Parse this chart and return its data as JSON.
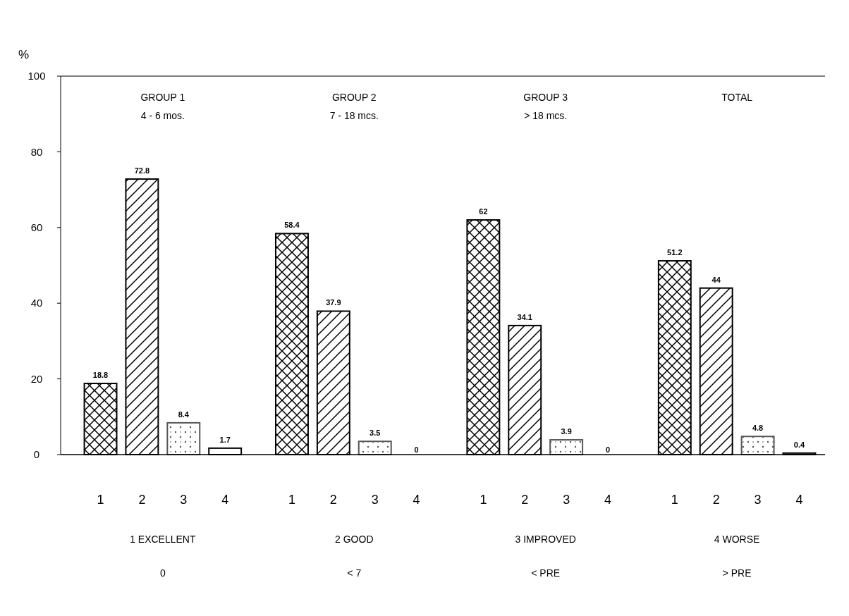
{
  "chart_data": {
    "type": "bar",
    "ylabel": "%",
    "categories": [
      "GROUP 1\n4 - 6 mos.",
      "GROUP 2\n7 - 18 mcs.",
      "GROUP 3\n> 18 mcs.",
      "TOTAL"
    ],
    "series": [
      {
        "name": "1",
        "color": "#000000",
        "values": [
          18.8,
          58.4,
          62,
          51.2
        ],
        "value_labels": [
          "18.8",
          "58.4",
          "62",
          "51.2"
        ]
      },
      {
        "name": "2",
        "color": "#000000",
        "values": [
          72.8,
          37.9,
          34.1,
          44
        ],
        "value_labels": [
          "72.8",
          "37.9",
          "34.1",
          "44"
        ]
      },
      {
        "name": "3",
        "color": "#555555",
        "values": [
          8.4,
          3.5,
          3.9,
          4.8
        ],
        "value_labels": [
          "8.4",
          "3.5",
          "3.9",
          "4.8"
        ]
      },
      {
        "name": "4",
        "color": "#000000",
        "values": [
          1.7,
          0,
          0,
          0.4
        ],
        "value_labels": [
          "1.7",
          null,
          null,
          "0.4"
        ]
      }
    ],
    "ylim": [
      0,
      100
    ],
    "yticks": [
      0,
      20,
      40,
      60,
      80,
      100
    ],
    "legend": "bottom",
    "annotations": [
      "1 EXCELLENT\n0",
      "2 GOOD\n< 7",
      "3 IMPROVED\n< PRE",
      "4 WORSE\n> PRE",
      "0",
      "0"
    ]
  }
}
